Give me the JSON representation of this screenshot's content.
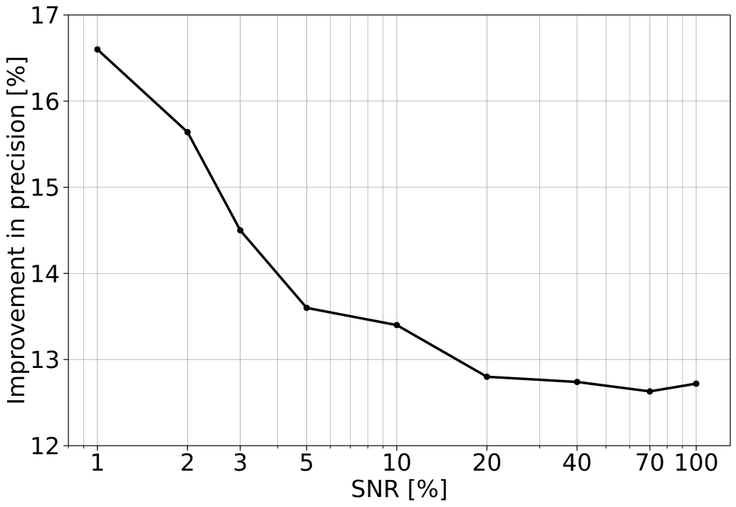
{
  "chart_data": {
    "type": "line",
    "title": "",
    "xlabel": "SNR [%]",
    "ylabel": "Improvement in precision [%]",
    "xscale": "log",
    "xlim": [
      0.8,
      130
    ],
    "ylim": [
      12,
      17
    ],
    "x_ticks": [
      1,
      2,
      3,
      5,
      10,
      20,
      40,
      70,
      100
    ],
    "x_tick_labels": [
      "1",
      "2",
      "3",
      "5",
      "10",
      "20",
      "40",
      "70",
      "100"
    ],
    "y_ticks": [
      12,
      13,
      14,
      15,
      16,
      17
    ],
    "y_tick_labels": [
      "12",
      "13",
      "14",
      "15",
      "16",
      "17"
    ],
    "grid": true,
    "grid_minor": true,
    "legend": "none",
    "series": [
      {
        "color": "#000000",
        "marker": "circle",
        "x": [
          1,
          2,
          3,
          5,
          10,
          20,
          40,
          70,
          100
        ],
        "y": [
          16.6,
          15.64,
          14.5,
          13.6,
          13.4,
          12.8,
          12.74,
          12.63,
          12.72
        ]
      }
    ]
  }
}
